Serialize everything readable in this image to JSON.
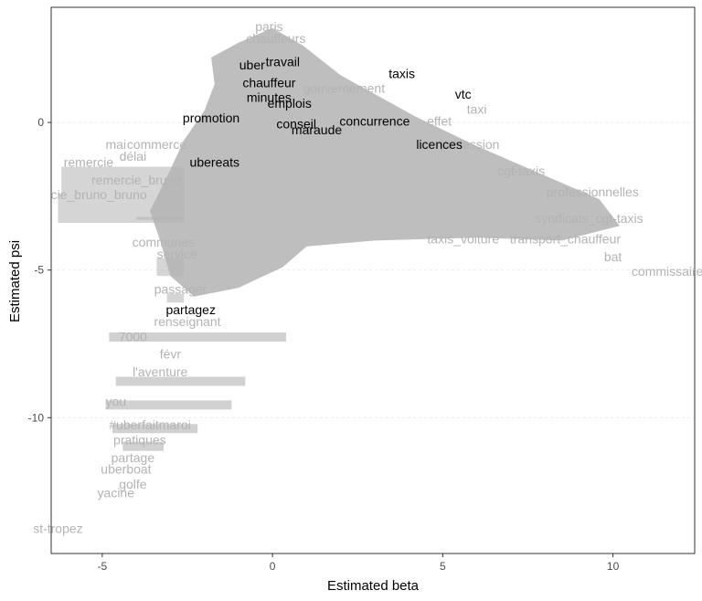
{
  "chart_data": {
    "type": "scatter",
    "title": "",
    "xlabel": "Estimated beta",
    "ylabel": "Estimated psi",
    "xlim": [
      -6.5,
      12.4
    ],
    "ylim": [
      -14.6,
      3.9
    ],
    "x_ticks": [
      -5,
      0,
      5,
      10
    ],
    "y_ticks": [
      0,
      -5,
      -10
    ],
    "x_tick_labels": [
      "-5",
      "0",
      "5",
      "10"
    ],
    "y_tick_labels": [
      "0",
      "-5",
      "-10"
    ],
    "grid": true,
    "legend": "none",
    "colors": {
      "highlight": "#000000",
      "background_words": "#b3b3b3",
      "panel_border": "#333333",
      "grid": "#ebebeb"
    },
    "highlighted_words": [
      {
        "label": "uber",
        "x": -0.6,
        "y": 1.8
      },
      {
        "label": "travail",
        "x": 0.3,
        "y": 1.9
      },
      {
        "label": "taxis",
        "x": 3.8,
        "y": 1.5
      },
      {
        "label": "vtc",
        "x": 5.6,
        "y": 0.8
      },
      {
        "label": "chauffeur",
        "x": -0.1,
        "y": 1.2
      },
      {
        "label": "minutes",
        "x": -0.1,
        "y": 0.7
      },
      {
        "label": "emplois",
        "x": 0.5,
        "y": 0.5
      },
      {
        "label": "promotion",
        "x": -1.8,
        "y": 0.0
      },
      {
        "label": "conseil",
        "x": 0.7,
        "y": -0.2
      },
      {
        "label": "maraude",
        "x": 1.3,
        "y": -0.4
      },
      {
        "label": "concurrence",
        "x": 3.0,
        "y": -0.1
      },
      {
        "label": "licences",
        "x": 4.9,
        "y": -0.9
      },
      {
        "label": "ubereats",
        "x": -1.7,
        "y": -1.5
      },
      {
        "label": "partagez",
        "x": -2.4,
        "y": -6.5
      }
    ],
    "background_words": [
      {
        "label": "paris",
        "x": -0.1,
        "y": 3.1
      },
      {
        "label": "chauffeurs",
        "x": 0.1,
        "y": 2.7
      },
      {
        "label": "gouvernement",
        "x": 2.1,
        "y": 1.0
      },
      {
        "label": "taxi",
        "x": 6.0,
        "y": 0.3
      },
      {
        "label": "effet",
        "x": 4.9,
        "y": -0.1
      },
      {
        "label": "profession",
        "x": 5.8,
        "y": -0.9
      },
      {
        "label": "cgt-taxis",
        "x": 7.3,
        "y": -1.8
      },
      {
        "label": "professionnelles",
        "x": 9.4,
        "y": -2.5
      },
      {
        "label": "syndicats_cgt-taxis",
        "x": 9.3,
        "y": -3.4
      },
      {
        "label": "transport_chauffeur",
        "x": 8.6,
        "y": -4.1
      },
      {
        "label": "bat",
        "x": 10.0,
        "y": -4.7
      },
      {
        "label": "commissaire",
        "x": 11.6,
        "y": -5.2
      },
      {
        "label": "taxis_voiture",
        "x": 5.6,
        "y": -4.1
      },
      {
        "label": "remercie",
        "x": -5.4,
        "y": -1.5
      },
      {
        "label": "remercie_bruno",
        "x": -4.0,
        "y": -2.1
      },
      {
        "label": "cie_bruno_bruno",
        "x": -5.1,
        "y": -2.6
      },
      {
        "label": "délai",
        "x": -4.1,
        "y": -1.3
      },
      {
        "label": "mai",
        "x": -4.6,
        "y": -0.9
      },
      {
        "label": "commerce",
        "x": -3.4,
        "y": -0.9
      },
      {
        "label": "communes",
        "x": -3.2,
        "y": -4.2
      },
      {
        "label": "service",
        "x": -2.8,
        "y": -4.6
      },
      {
        "label": "passager",
        "x": -2.7,
        "y": -5.8
      },
      {
        "label": "renseignant",
        "x": -2.5,
        "y": -6.9
      },
      {
        "label": "7000",
        "x": -4.1,
        "y": -7.4
      },
      {
        "label": "févr",
        "x": -3.0,
        "y": -8.0
      },
      {
        "label": "l'aventure",
        "x": -3.3,
        "y": -8.6
      },
      {
        "label": "you",
        "x": -4.6,
        "y": -9.6
      },
      {
        "label": "#uberfaitmaroi",
        "x": -3.6,
        "y": -10.4
      },
      {
        "label": "pratiques",
        "x": -3.9,
        "y": -10.9
      },
      {
        "label": "partage",
        "x": -4.1,
        "y": -11.5
      },
      {
        "label": "uberboat",
        "x": -4.3,
        "y": -11.9
      },
      {
        "label": "golfe",
        "x": -4.1,
        "y": -12.4
      },
      {
        "label": "yacine",
        "x": -4.6,
        "y": -12.7
      },
      {
        "label": "st-tropez",
        "x": -6.3,
        "y": -13.9
      }
    ]
  }
}
